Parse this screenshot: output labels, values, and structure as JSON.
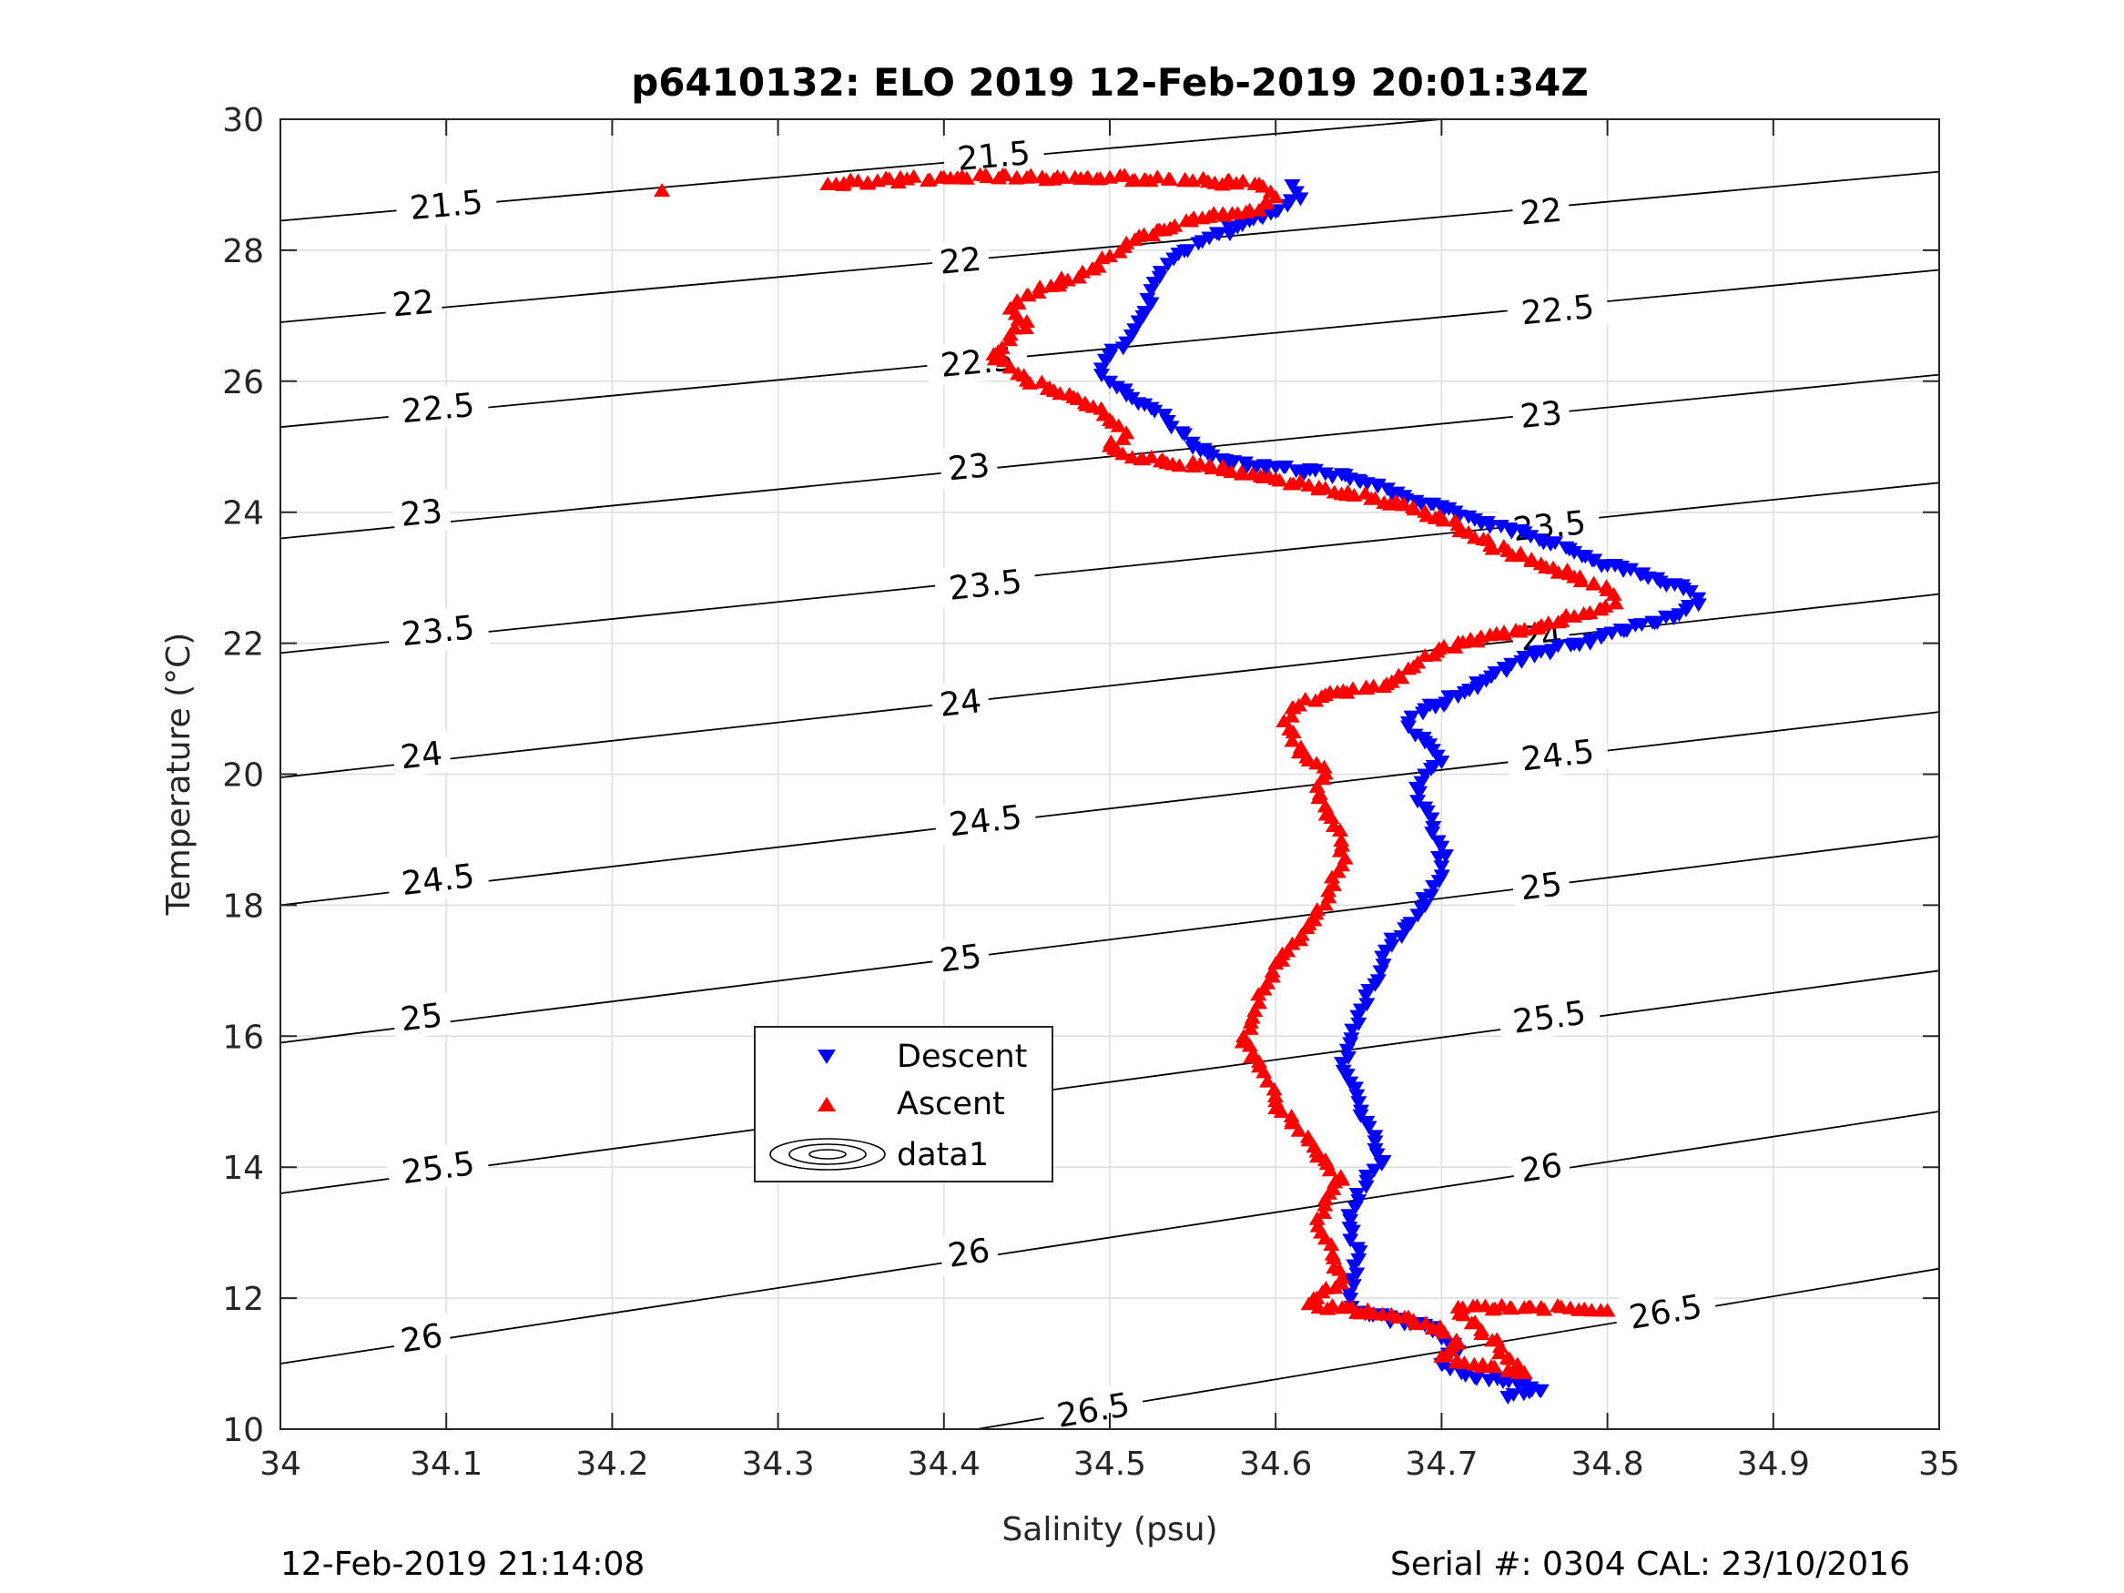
{
  "chart_data": {
    "type": "scatter",
    "title": "p6410132: ELO 2019 12-Feb-2019 20:01:34Z",
    "xlabel": "Salinity (psu)",
    "ylabel": "Temperature (°C)",
    "xlim": [
      34,
      35
    ],
    "ylim": [
      10,
      30
    ],
    "grid": true,
    "xticks": [
      "34",
      "34.1",
      "34.2",
      "34.3",
      "34.4",
      "34.5",
      "34.6",
      "34.7",
      "34.8",
      "34.9",
      "35"
    ],
    "yticks": [
      "10",
      "12",
      "14",
      "16",
      "18",
      "20",
      "22",
      "24",
      "26",
      "28",
      "30"
    ],
    "legend": {
      "placement": "center-left",
      "entries": [
        {
          "label": "Descent",
          "marker": "triangle-down",
          "color": "#0000ff"
        },
        {
          "label": "Ascent",
          "marker": "triangle-up",
          "color": "#ff0000"
        },
        {
          "label": "data1",
          "marker": "contour",
          "color": "#000000"
        }
      ]
    },
    "series": [
      {
        "name": "Descent",
        "marker": "triangle-down",
        "color": "#0000ff",
        "points": [
          [
            34.61,
            29.0
          ],
          [
            34.615,
            28.8
          ],
          [
            34.6,
            28.6
          ],
          [
            34.58,
            28.4
          ],
          [
            34.56,
            28.2
          ],
          [
            34.545,
            28.0
          ],
          [
            34.535,
            27.8
          ],
          [
            34.53,
            27.6
          ],
          [
            34.525,
            27.4
          ],
          [
            34.525,
            27.2
          ],
          [
            34.52,
            27.0
          ],
          [
            34.515,
            26.8
          ],
          [
            34.51,
            26.6
          ],
          [
            34.5,
            26.4
          ],
          [
            34.495,
            26.2
          ],
          [
            34.5,
            26.0
          ],
          [
            34.51,
            25.8
          ],
          [
            34.525,
            25.6
          ],
          [
            34.535,
            25.4
          ],
          [
            34.545,
            25.2
          ],
          [
            34.55,
            25.0
          ],
          [
            34.57,
            24.8
          ],
          [
            34.6,
            24.7
          ],
          [
            34.63,
            24.6
          ],
          [
            34.65,
            24.5
          ],
          [
            34.67,
            24.3
          ],
          [
            34.7,
            24.1
          ],
          [
            34.72,
            23.9
          ],
          [
            34.75,
            23.7
          ],
          [
            34.78,
            23.4
          ],
          [
            34.8,
            23.2
          ],
          [
            34.83,
            23.0
          ],
          [
            34.85,
            22.8
          ],
          [
            34.855,
            22.6
          ],
          [
            34.84,
            22.4
          ],
          [
            34.81,
            22.2
          ],
          [
            34.78,
            22.0
          ],
          [
            34.75,
            21.8
          ],
          [
            34.73,
            21.5
          ],
          [
            34.71,
            21.2
          ],
          [
            34.69,
            21.0
          ],
          [
            34.68,
            20.8
          ],
          [
            34.69,
            20.5
          ],
          [
            34.7,
            20.2
          ],
          [
            34.69,
            20.0
          ],
          [
            34.685,
            19.8
          ],
          [
            34.69,
            19.5
          ],
          [
            34.695,
            19.2
          ],
          [
            34.7,
            18.9
          ],
          [
            34.7,
            18.6
          ],
          [
            34.695,
            18.3
          ],
          [
            34.69,
            18.0
          ],
          [
            34.68,
            17.7
          ],
          [
            34.67,
            17.4
          ],
          [
            34.665,
            17.1
          ],
          [
            34.66,
            16.8
          ],
          [
            34.655,
            16.5
          ],
          [
            34.65,
            16.2
          ],
          [
            34.645,
            15.9
          ],
          [
            34.64,
            15.6
          ],
          [
            34.645,
            15.3
          ],
          [
            34.65,
            15.0
          ],
          [
            34.655,
            14.7
          ],
          [
            34.66,
            14.4
          ],
          [
            34.665,
            14.1
          ],
          [
            34.655,
            13.8
          ],
          [
            34.65,
            13.5
          ],
          [
            34.645,
            13.2
          ],
          [
            34.645,
            12.9
          ],
          [
            34.65,
            12.6
          ],
          [
            34.645,
            12.3
          ],
          [
            34.645,
            12.0
          ],
          [
            34.65,
            11.8
          ],
          [
            34.69,
            11.6
          ],
          [
            34.7,
            11.4
          ],
          [
            34.71,
            11.2
          ],
          [
            34.7,
            11.0
          ],
          [
            34.72,
            10.8
          ],
          [
            34.75,
            10.7
          ],
          [
            34.76,
            10.6
          ],
          [
            34.74,
            10.5
          ]
        ]
      },
      {
        "name": "Ascent",
        "marker": "triangle-up",
        "color": "#ff0000",
        "points": [
          [
            34.23,
            28.9
          ],
          [
            34.33,
            29.0
          ],
          [
            34.36,
            29.05
          ],
          [
            34.4,
            29.1
          ],
          [
            34.45,
            29.1
          ],
          [
            34.5,
            29.1
          ],
          [
            34.55,
            29.05
          ],
          [
            34.59,
            29.0
          ],
          [
            34.6,
            28.8
          ],
          [
            34.59,
            28.6
          ],
          [
            34.56,
            28.5
          ],
          [
            34.53,
            28.3
          ],
          [
            34.51,
            28.1
          ],
          [
            34.5,
            27.9
          ],
          [
            34.49,
            27.7
          ],
          [
            34.47,
            27.5
          ],
          [
            34.45,
            27.3
          ],
          [
            34.44,
            27.1
          ],
          [
            34.45,
            26.9
          ],
          [
            34.44,
            26.7
          ],
          [
            34.435,
            26.5
          ],
          [
            34.43,
            26.4
          ],
          [
            34.44,
            26.2
          ],
          [
            34.45,
            26.0
          ],
          [
            34.47,
            25.8
          ],
          [
            34.49,
            25.6
          ],
          [
            34.5,
            25.4
          ],
          [
            34.51,
            25.2
          ],
          [
            34.5,
            25.0
          ],
          [
            34.52,
            24.8
          ],
          [
            34.56,
            24.7
          ],
          [
            34.6,
            24.5
          ],
          [
            34.62,
            24.4
          ],
          [
            34.66,
            24.2
          ],
          [
            34.69,
            24.0
          ],
          [
            34.71,
            23.8
          ],
          [
            34.72,
            23.6
          ],
          [
            34.74,
            23.4
          ],
          [
            34.76,
            23.2
          ],
          [
            34.78,
            23.0
          ],
          [
            34.8,
            22.8
          ],
          [
            34.805,
            22.6
          ],
          [
            34.78,
            22.4
          ],
          [
            34.75,
            22.2
          ],
          [
            34.71,
            22.0
          ],
          [
            34.69,
            21.8
          ],
          [
            34.68,
            21.6
          ],
          [
            34.67,
            21.4
          ],
          [
            34.63,
            21.2
          ],
          [
            34.61,
            21.0
          ],
          [
            34.605,
            20.8
          ],
          [
            34.61,
            20.5
          ],
          [
            34.62,
            20.2
          ],
          [
            34.63,
            20.0
          ],
          [
            34.625,
            19.8
          ],
          [
            34.63,
            19.5
          ],
          [
            34.635,
            19.2
          ],
          [
            34.64,
            18.9
          ],
          [
            34.64,
            18.6
          ],
          [
            34.635,
            18.3
          ],
          [
            34.63,
            18.0
          ],
          [
            34.62,
            17.7
          ],
          [
            34.61,
            17.4
          ],
          [
            34.6,
            17.1
          ],
          [
            34.595,
            16.8
          ],
          [
            34.59,
            16.5
          ],
          [
            34.585,
            16.2
          ],
          [
            34.58,
            15.9
          ],
          [
            34.59,
            15.6
          ],
          [
            34.595,
            15.3
          ],
          [
            34.6,
            15.0
          ],
          [
            34.61,
            14.7
          ],
          [
            34.62,
            14.4
          ],
          [
            34.63,
            14.1
          ],
          [
            34.64,
            13.8
          ],
          [
            34.63,
            13.5
          ],
          [
            34.625,
            13.2
          ],
          [
            34.63,
            12.9
          ],
          [
            34.635,
            12.6
          ],
          [
            34.64,
            12.3
          ],
          [
            34.62,
            11.9
          ],
          [
            34.68,
            11.7
          ],
          [
            34.7,
            11.5
          ],
          [
            34.71,
            11.3
          ],
          [
            34.7,
            11.1
          ],
          [
            34.73,
            10.95
          ],
          [
            34.75,
            10.85
          ],
          [
            34.71,
            11.85
          ],
          [
            34.76,
            11.85
          ],
          [
            34.8,
            11.8
          ]
        ]
      }
    ],
    "contours": [
      {
        "label": "21.5",
        "points": [
          [
            34.0,
            28.45
          ],
          [
            34.7,
            30.0
          ]
        ],
        "label_positions": [
          [
            34.1,
            28.7
          ],
          [
            34.43,
            29.45
          ]
        ]
      },
      {
        "label": "22",
        "points": [
          [
            34.0,
            26.9
          ],
          [
            35.0,
            29.2
          ]
        ],
        "label_positions": [
          [
            34.08,
            27.2
          ],
          [
            34.41,
            27.85
          ],
          [
            34.76,
            28.6
          ]
        ]
      },
      {
        "label": "22.5",
        "points": [
          [
            34.0,
            25.3
          ],
          [
            35.0,
            27.7
          ]
        ],
        "label_positions": [
          [
            34.095,
            25.6
          ],
          [
            34.42,
            26.3
          ],
          [
            34.77,
            27.1
          ]
        ]
      },
      {
        "label": "23",
        "points": [
          [
            34.0,
            23.6
          ],
          [
            35.0,
            26.1
          ]
        ],
        "label_positions": [
          [
            34.085,
            24.0
          ],
          [
            34.415,
            24.7
          ],
          [
            34.76,
            25.5
          ]
        ]
      },
      {
        "label": "23.5",
        "points": [
          [
            34.0,
            21.85
          ],
          [
            35.0,
            24.45
          ]
        ],
        "label_positions": [
          [
            34.095,
            22.2
          ],
          [
            34.425,
            22.9
          ],
          [
            34.765,
            23.8
          ]
        ]
      },
      {
        "label": "24",
        "points": [
          [
            34.0,
            19.95
          ],
          [
            35.0,
            22.75
          ]
        ],
        "label_positions": [
          [
            34.085,
            20.3
          ],
          [
            34.41,
            21.1
          ],
          [
            34.76,
            22.1
          ]
        ]
      },
      {
        "label": "24.5",
        "points": [
          [
            34.0,
            18.0
          ],
          [
            35.0,
            20.95
          ]
        ],
        "label_positions": [
          [
            34.095,
            18.4
          ],
          [
            34.425,
            19.3
          ],
          [
            34.77,
            20.3
          ]
        ]
      },
      {
        "label": "25",
        "points": [
          [
            34.0,
            15.9
          ],
          [
            35.0,
            19.05
          ]
        ],
        "label_positions": [
          [
            34.085,
            16.3
          ],
          [
            34.41,
            17.2
          ],
          [
            34.76,
            18.3
          ]
        ]
      },
      {
        "label": "25.5",
        "points": [
          [
            34.0,
            13.6
          ],
          [
            35.0,
            17.0
          ]
        ],
        "label_positions": [
          [
            34.095,
            14.0
          ],
          [
            34.43,
            15.1
          ],
          [
            34.765,
            16.3
          ]
        ]
      },
      {
        "label": "26",
        "points": [
          [
            34.0,
            11.0
          ],
          [
            35.0,
            14.85
          ]
        ],
        "label_positions": [
          [
            34.085,
            11.4
          ],
          [
            34.415,
            12.7
          ],
          [
            34.76,
            14.0
          ]
        ]
      },
      {
        "label": "26.5",
        "points": [
          [
            34.42,
            10.0
          ],
          [
            35.0,
            12.45
          ]
        ],
        "label_positions": [
          [
            34.49,
            10.3
          ],
          [
            34.835,
            11.8
          ]
        ]
      }
    ]
  },
  "footer": {
    "timestamp": "12-Feb-2019 21:14:08",
    "serial": "Serial #: 0304  CAL: 23/10/2016"
  }
}
